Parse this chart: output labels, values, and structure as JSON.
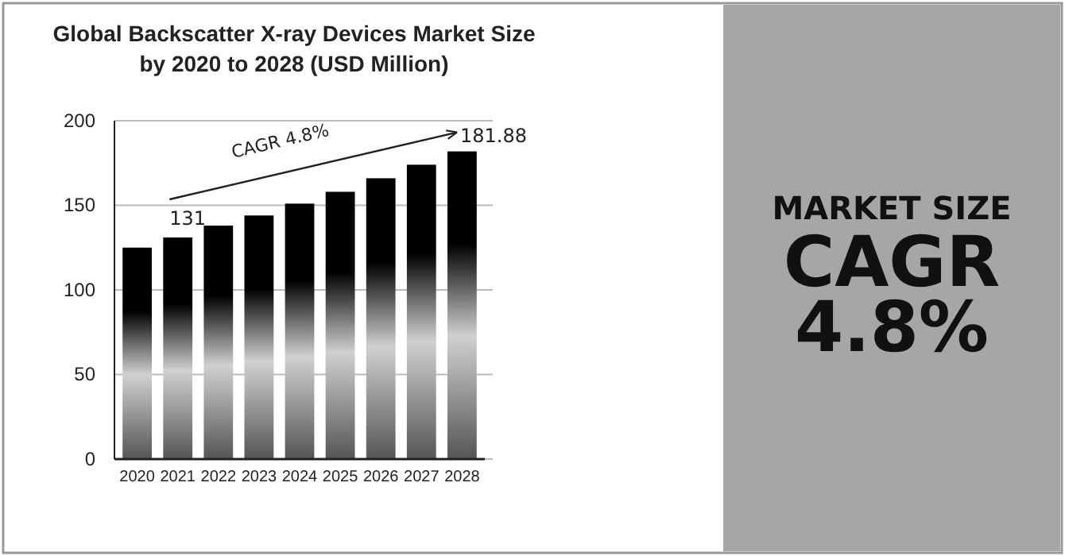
{
  "chart_data": {
    "type": "bar",
    "title": "Global Backscatter X-ray Devices Market Size by 2020 to 2028 (USD Million)",
    "categories": [
      "2020",
      "2021",
      "2022",
      "2023",
      "2024",
      "2025",
      "2026",
      "2027",
      "2028"
    ],
    "values": [
      125,
      131,
      138,
      144,
      151,
      158,
      166,
      174,
      181.88
    ],
    "value_labels": [
      null,
      "131",
      null,
      null,
      null,
      null,
      null,
      null,
      "181.88"
    ],
    "color": "#000000",
    "ylim": [
      0,
      200
    ],
    "yticks": [
      0,
      50,
      100,
      150,
      200
    ],
    "grid": "y",
    "annotations": [
      "CAGR 4.8%",
      "MARKET SIZE",
      "CAGR",
      "4.8%"
    ]
  }
}
